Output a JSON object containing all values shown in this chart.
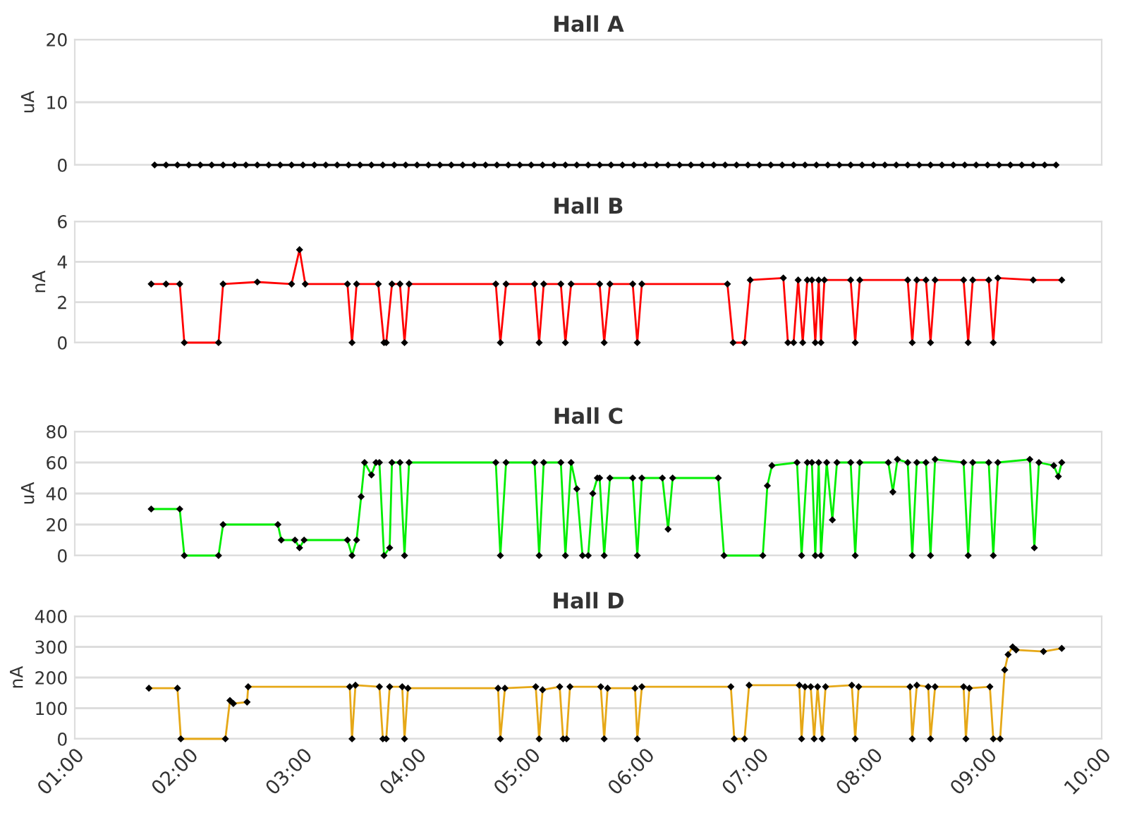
{
  "chart_data": [
    {
      "type": "line",
      "title": "Hall A",
      "ylabel": "uA",
      "xlim": [
        1,
        10
      ],
      "ylim": [
        0,
        20
      ],
      "yticks": [
        0,
        10,
        20
      ],
      "tick_labels": "y",
      "grid": "y",
      "marker": "diamond",
      "series": [
        {
          "color": "#000000",
          "x": [
            1.7,
            1.8,
            1.9,
            2.0,
            2.1,
            2.2,
            2.3,
            2.4,
            2.5,
            2.6,
            2.7,
            2.8,
            2.9,
            3.0,
            3.1,
            3.2,
            3.3,
            3.4,
            3.5,
            3.6,
            3.7,
            3.8,
            3.9,
            4.0,
            4.1,
            4.2,
            4.3,
            4.4,
            4.5,
            4.6,
            4.7,
            4.8,
            4.9,
            5.0,
            5.1,
            5.2,
            5.3,
            5.4,
            5.5,
            5.6,
            5.7,
            5.8,
            5.9,
            6.0,
            6.1,
            6.2,
            6.3,
            6.4,
            6.5,
            6.6,
            6.7,
            6.8,
            6.9,
            7.0,
            7.1,
            7.2,
            7.3,
            7.4,
            7.5,
            7.6,
            7.7,
            7.8,
            7.9,
            8.0,
            8.1,
            8.2,
            8.3,
            8.4,
            8.5,
            8.6,
            8.7,
            8.8,
            8.9,
            9.0,
            9.1,
            9.2,
            9.3,
            9.4,
            9.5,
            9.6
          ],
          "values": [
            0,
            0,
            0,
            0,
            0,
            0,
            0,
            0,
            0,
            0,
            0,
            0,
            0,
            0,
            0,
            0,
            0,
            0,
            0,
            0,
            0,
            0,
            0,
            0,
            0,
            0,
            0,
            0,
            0,
            0,
            0,
            0,
            0,
            0,
            0,
            0,
            0,
            0,
            0,
            0,
            0,
            0,
            0,
            0,
            0,
            0,
            0,
            0,
            0,
            0,
            0,
            0,
            0,
            0,
            0,
            0,
            0,
            0,
            0,
            0,
            0,
            0,
            0,
            0,
            0,
            0,
            0,
            0,
            0,
            0,
            0,
            0,
            0,
            0,
            0,
            0,
            0,
            0,
            0,
            0
          ]
        }
      ]
    },
    {
      "type": "line",
      "title": "Hall B",
      "ylabel": "nA",
      "xlim": [
        1,
        10
      ],
      "ylim": [
        0,
        6
      ],
      "yticks": [
        0,
        2,
        4,
        6
      ],
      "tick_labels": "y",
      "grid": "y",
      "marker": "diamond",
      "series": [
        {
          "color": "#ff0000",
          "x": [
            1.67,
            1.8,
            1.92,
            1.96,
            2.26,
            2.3,
            2.6,
            2.9,
            2.97,
            3.02,
            3.39,
            3.43,
            3.47,
            3.66,
            3.71,
            3.73,
            3.78,
            3.85,
            3.89,
            3.93,
            4.69,
            4.73,
            4.78,
            5.03,
            5.07,
            5.11,
            5.26,
            5.3,
            5.35,
            5.6,
            5.64,
            5.69,
            5.89,
            5.93,
            5.97,
            6.72,
            6.77,
            6.87,
            6.92,
            7.21,
            7.25,
            7.3,
            7.34,
            7.38,
            7.42,
            7.46,
            7.49,
            7.52,
            7.54,
            7.57,
            7.8,
            7.84,
            7.88,
            8.3,
            8.34,
            8.38,
            8.46,
            8.5,
            8.54,
            8.79,
            8.83,
            8.87,
            9.01,
            9.05,
            9.09,
            9.4,
            9.65
          ],
          "values": [
            2.9,
            2.9,
            2.9,
            0,
            0,
            2.9,
            3.0,
            2.9,
            4.6,
            2.9,
            2.9,
            0,
            2.9,
            2.9,
            0,
            0,
            2.9,
            2.9,
            0,
            2.9,
            2.9,
            0,
            2.9,
            2.9,
            0,
            2.9,
            2.9,
            0,
            2.9,
            2.9,
            0,
            2.9,
            2.9,
            0,
            2.9,
            2.9,
            0,
            0,
            3.1,
            3.2,
            0,
            0,
            3.1,
            0,
            3.1,
            3.1,
            0,
            3.1,
            0,
            3.1,
            3.1,
            0,
            3.1,
            3.1,
            0,
            3.1,
            3.1,
            0,
            3.1,
            3.1,
            0,
            3.1,
            3.1,
            0,
            3.2,
            3.1,
            3.1
          ]
        }
      ]
    },
    {
      "type": "line",
      "title": "Hall C",
      "ylabel": "uA",
      "xlim": [
        1,
        10
      ],
      "ylim": [
        0,
        80
      ],
      "yticks": [
        0,
        20,
        40,
        60,
        80
      ],
      "tick_labels": "y",
      "grid": "y",
      "marker": "diamond",
      "series": [
        {
          "color": "#00ee00",
          "x": [
            1.67,
            1.92,
            1.96,
            2.26,
            2.3,
            2.78,
            2.81,
            2.93,
            2.97,
            3.01,
            3.39,
            3.43,
            3.47,
            3.51,
            3.54,
            3.6,
            3.64,
            3.67,
            3.71,
            3.76,
            3.78,
            3.85,
            3.89,
            3.93,
            4.69,
            4.73,
            4.78,
            5.03,
            5.07,
            5.11,
            5.26,
            5.3,
            5.35,
            5.4,
            5.45,
            5.5,
            5.54,
            5.58,
            5.6,
            5.64,
            5.69,
            5.89,
            5.93,
            5.97,
            6.15,
            6.2,
            6.24,
            6.64,
            6.69,
            7.03,
            7.07,
            7.11,
            7.33,
            7.37,
            7.42,
            7.46,
            7.49,
            7.52,
            7.54,
            7.59,
            7.64,
            7.68,
            7.8,
            7.84,
            7.88,
            8.13,
            8.17,
            8.21,
            8.3,
            8.34,
            8.38,
            8.46,
            8.5,
            8.54,
            8.79,
            8.83,
            8.87,
            9.01,
            9.05,
            9.09,
            9.37,
            9.41,
            9.45,
            9.58,
            9.62,
            9.65
          ],
          "values": [
            30,
            30,
            0,
            0,
            20,
            20,
            10,
            10,
            5,
            10,
            10,
            0,
            10,
            38,
            60,
            52,
            60,
            60,
            0,
            5,
            60,
            60,
            0,
            60,
            60,
            0,
            60,
            60,
            0,
            60,
            60,
            0,
            60,
            43,
            0,
            0,
            40,
            50,
            50,
            0,
            50,
            50,
            0,
            50,
            50,
            17,
            50,
            50,
            0,
            0,
            45,
            58,
            60,
            0,
            60,
            60,
            0,
            60,
            0,
            60,
            23,
            60,
            60,
            0,
            60,
            60,
            41,
            62,
            60,
            0,
            60,
            60,
            0,
            62,
            60,
            0,
            60,
            60,
            0,
            60,
            62,
            5,
            60,
            58,
            51,
            60
          ]
        }
      ]
    },
    {
      "type": "line",
      "title": "Hall D",
      "ylabel": "nA",
      "xlim": [
        1,
        10
      ],
      "ylim": [
        0,
        400
      ],
      "yticks": [
        0,
        100,
        200,
        300,
        400
      ],
      "grid": "y",
      "marker": "diamond",
      "xticks": [
        {
          "value": 1,
          "label": "01:00"
        },
        {
          "value": 2,
          "label": "02:00"
        },
        {
          "value": 3,
          "label": "03:00"
        },
        {
          "value": 4,
          "label": "04:00"
        },
        {
          "value": 5,
          "label": "05:00"
        },
        {
          "value": 6,
          "label": "06:00"
        },
        {
          "value": 7,
          "label": "07:00"
        },
        {
          "value": 8,
          "label": "08:00"
        },
        {
          "value": 9,
          "label": "09:00"
        },
        {
          "value": 10,
          "label": "10:00"
        }
      ],
      "series": [
        {
          "color": "#e6a817",
          "x": [
            1.65,
            1.9,
            1.93,
            2.32,
            2.36,
            2.39,
            2.51,
            2.52,
            3.41,
            3.43,
            3.46,
            3.67,
            3.7,
            3.73,
            3.76,
            3.87,
            3.89,
            3.92,
            4.71,
            4.73,
            4.77,
            5.04,
            5.07,
            5.1,
            5.25,
            5.28,
            5.31,
            5.34,
            5.61,
            5.64,
            5.67,
            5.91,
            5.93,
            5.97,
            6.75,
            6.78,
            6.87,
            6.91,
            7.35,
            7.37,
            7.4,
            7.45,
            7.48,
            7.51,
            7.55,
            7.58,
            7.81,
            7.84,
            7.87,
            8.32,
            8.34,
            8.38,
            8.48,
            8.5,
            8.54,
            8.79,
            8.81,
            8.84,
            9.02,
            9.05,
            9.11,
            9.15,
            9.18,
            9.22,
            9.25,
            9.49,
            9.65
          ],
          "values": [
            165,
            165,
            0,
            0,
            125,
            115,
            120,
            170,
            170,
            0,
            175,
            170,
            0,
            0,
            170,
            170,
            0,
            165,
            165,
            0,
            165,
            170,
            0,
            160,
            170,
            0,
            0,
            170,
            170,
            0,
            165,
            165,
            0,
            170,
            170,
            0,
            0,
            175,
            175,
            0,
            170,
            170,
            0,
            170,
            0,
            170,
            175,
            0,
            170,
            170,
            0,
            175,
            170,
            0,
            170,
            170,
            0,
            165,
            170,
            0,
            0,
            225,
            275,
            300,
            290,
            285,
            295
          ]
        }
      ]
    }
  ]
}
